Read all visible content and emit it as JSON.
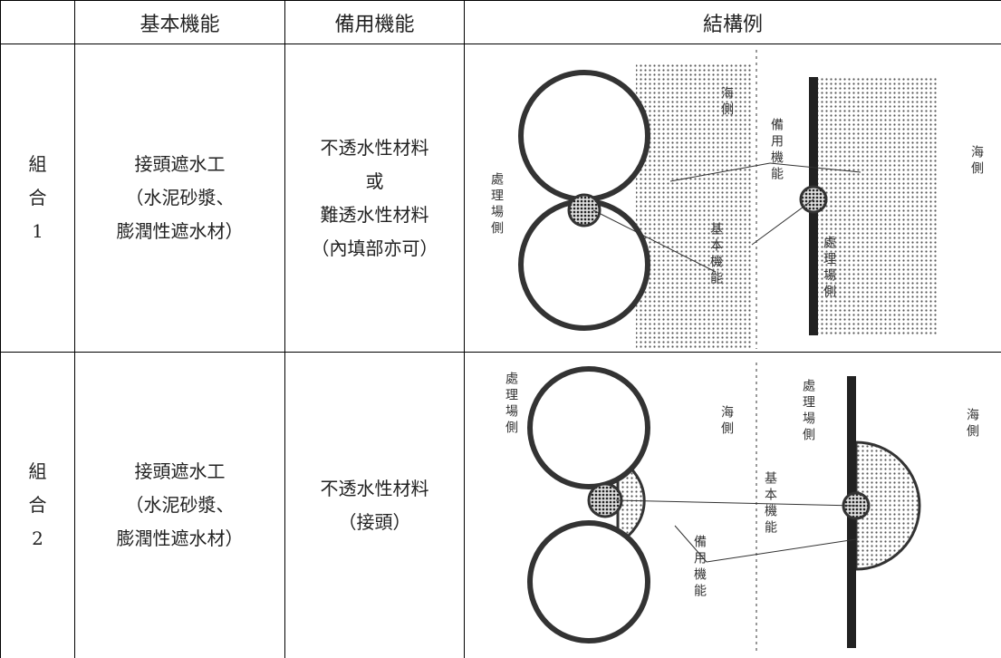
{
  "table": {
    "header": [
      "基本機能",
      "備用機能",
      "結構例"
    ],
    "rows": [
      {
        "label": [
          "組",
          "合",
          "1"
        ],
        "basic": [
          "接頭遮水工",
          "（水泥砂漿、",
          "膨潤性遮水材）"
        ],
        "backup": [
          "不透水性材料",
          "或",
          "難透水性材料",
          "（內填部亦可）"
        ],
        "diagram_labels": [
          "處理場側",
          "海側",
          "備用機能",
          "基本機能",
          "處理場側",
          "海側"
        ]
      },
      {
        "label": [
          "組",
          "合",
          "2"
        ],
        "basic": [
          "接頭遮水工",
          "（水泥砂漿、",
          "膨潤性遮水材）"
        ],
        "backup": [
          "不透水性材料",
          "（接頭）"
        ],
        "diagram_labels": [
          "處理場側",
          "海側",
          "基本機能",
          "備用機能",
          "處理場側",
          "海側"
        ]
      }
    ]
  }
}
